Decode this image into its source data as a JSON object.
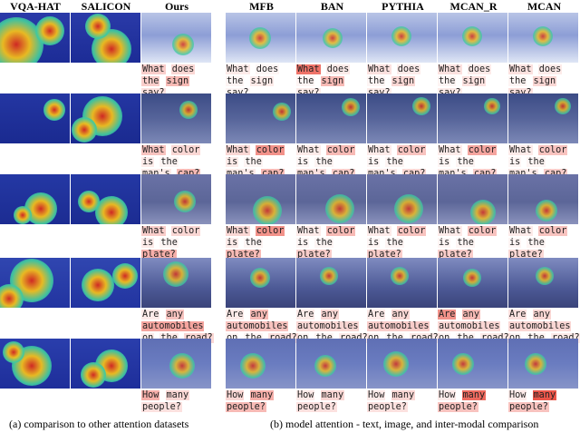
{
  "columns": {
    "left": [
      "VQA-HAT",
      "SALICON",
      "Ours"
    ],
    "right": [
      "MFB",
      "BAN",
      "PYTHIA",
      "MCAN_R",
      "MCAN"
    ]
  },
  "captions": {
    "left": "(a) comparison to other attention datasets",
    "right": "(b) model attention - text, image, and inter-modal comparison"
  },
  "rows": [
    {
      "scene": "snow",
      "question_lines": [
        [
          "What",
          "does"
        ],
        [
          "the",
          "sign"
        ],
        [
          "say?"
        ]
      ],
      "ours_weights": [
        [
          0.25,
          0.2
        ],
        [
          0.25,
          0.35
        ],
        [
          0.15
        ]
      ],
      "model_weights": [
        [
          [
            0.1,
            0.05
          ],
          [
            0.05,
            0.1
          ],
          [
            0.05
          ]
        ],
        [
          [
            0.7,
            0.1
          ],
          [
            0.05,
            0.35
          ],
          [
            0.1
          ]
        ],
        [
          [
            0.15,
            0.1
          ],
          [
            0.05,
            0.2
          ],
          [
            0.1
          ]
        ],
        [
          [
            0.15,
            0.1
          ],
          [
            0.05,
            0.15
          ],
          [
            0.1
          ]
        ],
        [
          [
            0.15,
            0.1
          ],
          [
            0.05,
            0.2
          ],
          [
            0.15
          ]
        ]
      ]
    },
    {
      "scene": "cafe",
      "question_lines": [
        [
          "What",
          "color"
        ],
        [
          "is",
          "the"
        ],
        [
          "man's",
          "cap?"
        ]
      ],
      "ours_weights": [
        [
          0.3,
          0.2
        ],
        [
          0.1,
          0.05
        ],
        [
          0.1,
          0.35
        ]
      ],
      "model_weights": [
        [
          [
            0.2,
            0.55
          ],
          [
            0.1,
            0.05
          ],
          [
            0.1,
            0.35
          ]
        ],
        [
          [
            0.1,
            0.35
          ],
          [
            0.05,
            0.05
          ],
          [
            0.15,
            0.25
          ]
        ],
        [
          [
            0.1,
            0.3
          ],
          [
            0.05,
            0.05
          ],
          [
            0.1,
            0.2
          ]
        ],
        [
          [
            0.1,
            0.45
          ],
          [
            0.05,
            0.05
          ],
          [
            0.1,
            0.25
          ]
        ],
        [
          [
            0.1,
            0.3
          ],
          [
            0.05,
            0.05
          ],
          [
            0.1,
            0.25
          ]
        ]
      ]
    },
    {
      "scene": "plates",
      "question_lines": [
        [
          "What",
          "color"
        ],
        [
          "is",
          "the"
        ],
        [
          "plate?"
        ]
      ],
      "ours_weights": [
        [
          0.25,
          0.2
        ],
        [
          0.1,
          0.05
        ],
        [
          0.4
        ]
      ],
      "model_weights": [
        [
          [
            0.2,
            0.55
          ],
          [
            0.1,
            0.05
          ],
          [
            0.35
          ]
        ],
        [
          [
            0.1,
            0.35
          ],
          [
            0.05,
            0.05
          ],
          [
            0.25
          ]
        ],
        [
          [
            0.1,
            0.3
          ],
          [
            0.05,
            0.05
          ],
          [
            0.25
          ]
        ],
        [
          [
            0.1,
            0.3
          ],
          [
            0.05,
            0.05
          ],
          [
            0.25
          ]
        ],
        [
          [
            0.1,
            0.3
          ],
          [
            0.05,
            0.05
          ],
          [
            0.2
          ]
        ]
      ]
    },
    {
      "scene": "street",
      "question_lines": [
        [
          "Are",
          "any"
        ],
        [
          "automobiles"
        ],
        [
          "on",
          "the",
          "road?"
        ]
      ],
      "ours_weights": [
        [
          0.1,
          0.3
        ],
        [
          0.45
        ],
        [
          0.1,
          0.1,
          0.2
        ]
      ],
      "model_weights": [
        [
          [
            0.1,
            0.35
          ],
          [
            0.3
          ],
          [
            0.05,
            0.05,
            0.15
          ]
        ],
        [
          [
            0.1,
            0.2
          ],
          [
            0.2
          ],
          [
            0.05,
            0.05,
            0.1
          ]
        ],
        [
          [
            0.1,
            0.2
          ],
          [
            0.25
          ],
          [
            0.05,
            0.05,
            0.1
          ]
        ],
        [
          [
            0.55,
            0.35
          ],
          [
            0.2
          ],
          [
            0.05,
            0.05,
            0.1
          ]
        ],
        [
          [
            0.15,
            0.2
          ],
          [
            0.2
          ],
          [
            0.05,
            0.05,
            0.1
          ]
        ]
      ]
    },
    {
      "scene": "field",
      "question_lines": [
        [
          "How",
          "many"
        ],
        [
          "people?"
        ]
      ],
      "ours_weights": [
        [
          0.4,
          0.2
        ],
        [
          0.15
        ]
      ],
      "model_weights": [
        [
          [
            0.2,
            0.4
          ],
          [
            0.35
          ]
        ],
        [
          [
            0.1,
            0.2
          ],
          [
            0.15
          ]
        ],
        [
          [
            0.1,
            0.2
          ],
          [
            0.15
          ]
        ],
        [
          [
            0.1,
            0.75
          ],
          [
            0.3
          ]
        ],
        [
          [
            0.1,
            0.85
          ],
          [
            0.3
          ]
        ]
      ]
    }
  ],
  "colors": {
    "attention_text": "#e8382a",
    "heat_hot": "#d8281e",
    "heat_warm": "#f2c01c",
    "heat_cool": "#40c8a0"
  }
}
